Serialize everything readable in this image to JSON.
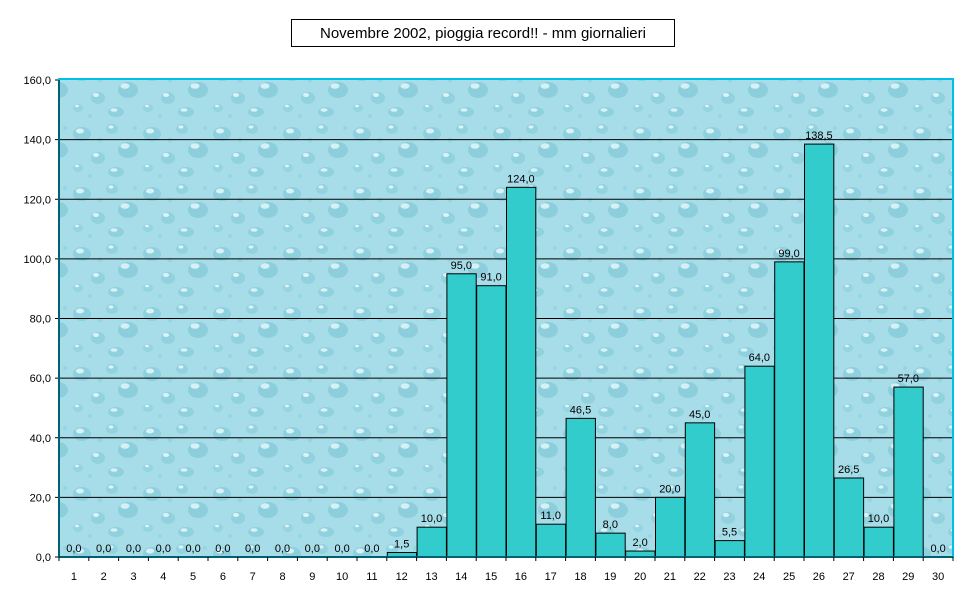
{
  "chart_data": {
    "type": "bar",
    "title": "Novembre 2002, pioggia record!!  -  mm giornalieri",
    "xlabel": "",
    "ylabel": "",
    "ylim": [
      0,
      160
    ],
    "yticks": [
      "0,0",
      "20,0",
      "40,0",
      "60,0",
      "80,0",
      "100,0",
      "120,0",
      "140,0",
      "160,0"
    ],
    "grid": true,
    "legend": "none",
    "categories": [
      "1",
      "2",
      "3",
      "4",
      "5",
      "6",
      "7",
      "8",
      "9",
      "10",
      "11",
      "12",
      "13",
      "14",
      "15",
      "16",
      "17",
      "18",
      "19",
      "20",
      "21",
      "22",
      "23",
      "24",
      "25",
      "26",
      "27",
      "28",
      "29",
      "30"
    ],
    "values": [
      0,
      0,
      0,
      0,
      0,
      0,
      0,
      0,
      0,
      0,
      0,
      1.5,
      10,
      95,
      91,
      124,
      11,
      46.5,
      8,
      2,
      20,
      45,
      5.5,
      64,
      99,
      138.5,
      26.5,
      10,
      57,
      0
    ],
    "labels": [
      "0,0",
      "0,0",
      "0,0",
      "0,0",
      "0,0",
      "0,0",
      "0,0",
      "0,0",
      "0,0",
      "0,0",
      "0,0",
      "1,5",
      "10,0",
      "95,0",
      "91,0",
      "124,0",
      "11,0",
      "46,5",
      "8,0",
      "2,0",
      "20,0",
      "45,0",
      "5,5",
      "64,0",
      "99,0",
      "138,5",
      "26,5",
      "10,0",
      "57,0",
      "0,0"
    ],
    "colors": {
      "bar": "#33CCCC",
      "plot_bg": "#A8DEE9",
      "border": "#00C0E8"
    }
  }
}
